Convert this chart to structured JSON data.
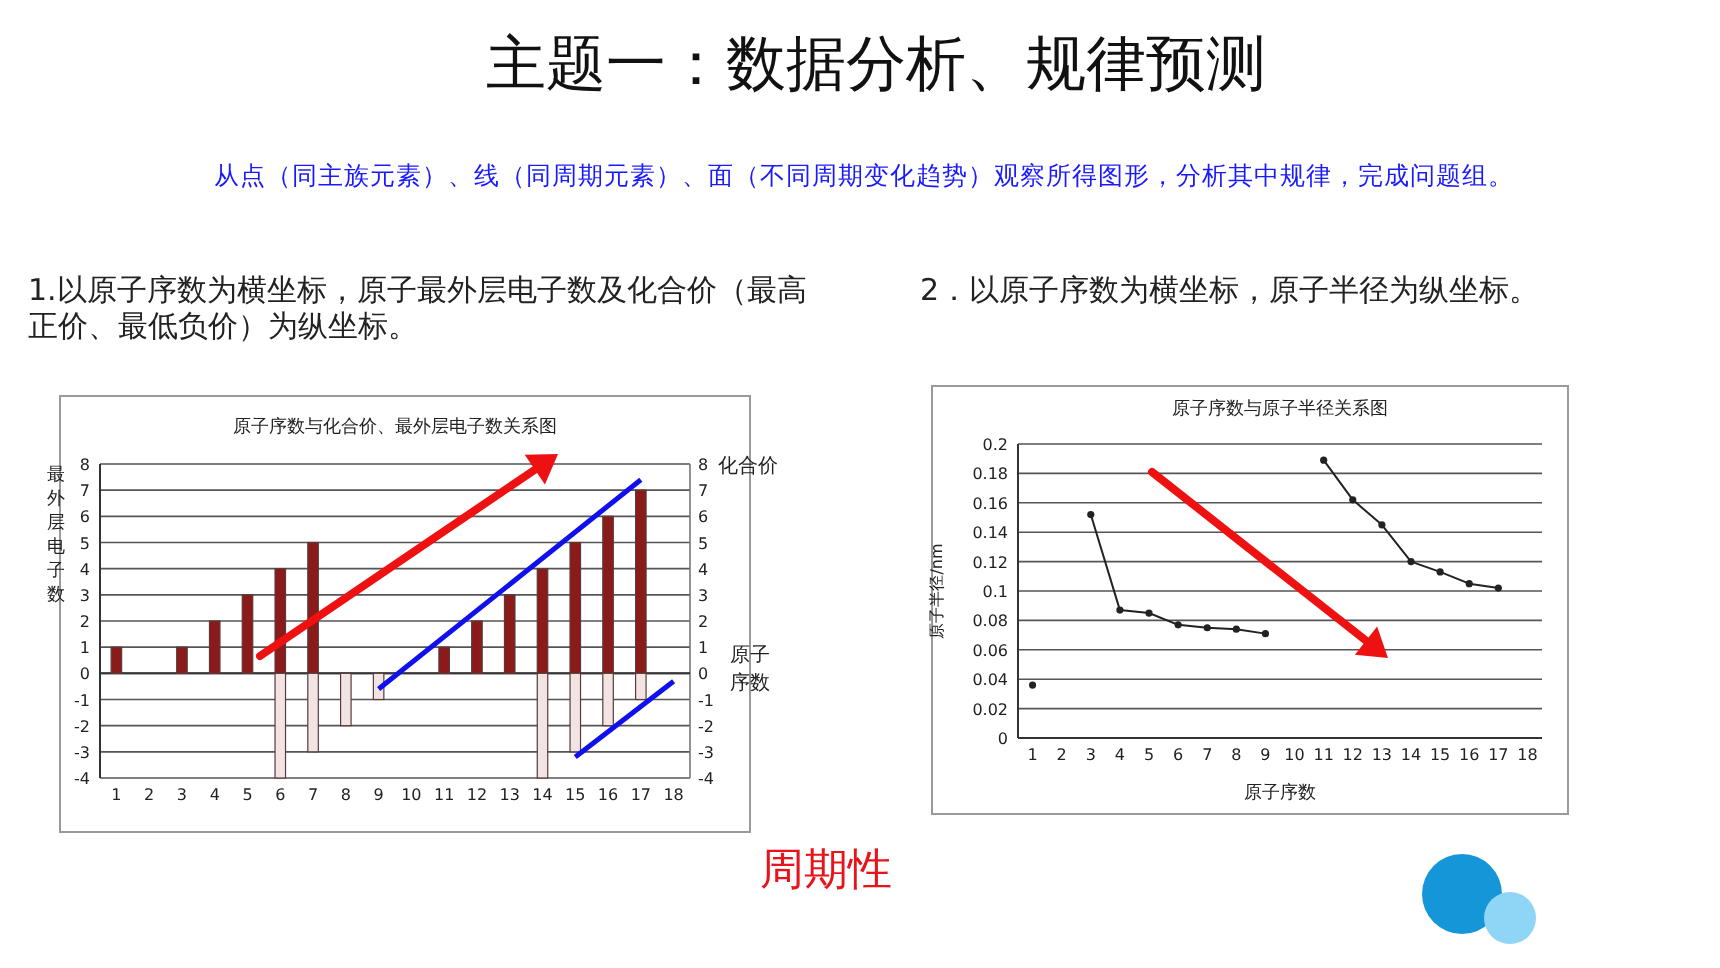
{
  "chart_data": [
    {
      "type": "other",
      "title": "主题一：数据分析、规律预测",
      "subtitle": "从点（同主族元素）、线（同周期元素）、面（不同周期变化趋势）观察所得图形，分析其中规律，完成问题组。",
      "annotations": [
        "1.以原子序数为横坐标，原子最外层电子数及化合价（最高正价、最低负价）为纵坐标。",
        "2．以原子序数为横坐标，原子半径为纵坐标。",
        "周期性"
      ]
    },
    {
      "type": "bar",
      "title": "原子序数与化合价、最外层电子数关系图",
      "ylabel": "最外层电子数",
      "y2label": "化合价",
      "xlabel": "原子序数",
      "categories": [
        "1",
        "2",
        "3",
        "4",
        "5",
        "6",
        "7",
        "8",
        "9",
        "10",
        "11",
        "12",
        "13",
        "14",
        "15",
        "16",
        "17",
        "18"
      ],
      "series": [
        {
          "color": "#8b1a1a",
          "values": [
            1,
            null,
            1,
            2,
            3,
            4,
            5,
            null,
            null,
            null,
            1,
            2,
            3,
            4,
            5,
            6,
            7,
            null
          ]
        },
        {
          "color": "#f3e4e4",
          "values": [
            null,
            null,
            null,
            null,
            null,
            -4,
            -3,
            -2,
            -1,
            null,
            null,
            null,
            null,
            -4,
            -3,
            -2,
            -1,
            null
          ]
        },
        {
          "type": "line",
          "color": "#1010ee",
          "x": [
            "9",
            "17"
          ],
          "values": [
            -0.6,
            7.4
          ]
        },
        {
          "type": "line",
          "color": "#1010ee",
          "x": [
            "15",
            "18"
          ],
          "values": [
            -3.2,
            -0.3
          ]
        }
      ],
      "ylim": [
        -4,
        8
      ],
      "yticks": [
        -4,
        -3,
        -2,
        -1,
        0,
        1,
        2,
        3,
        4,
        5,
        6,
        7,
        8
      ],
      "y2lim": [
        -4,
        8
      ],
      "y2ticks": [
        -4,
        -3,
        -2,
        -1,
        0,
        1,
        2,
        3,
        4,
        5,
        6,
        7,
        8
      ],
      "grid": "y"
    },
    {
      "type": "line",
      "title": "原子序数与原子半径关系图",
      "ylabel": "原子半径/nm",
      "xlabel": "原子序数",
      "categories": [
        "1",
        "2",
        "3",
        "4",
        "5",
        "6",
        "7",
        "8",
        "9",
        "10",
        "11",
        "12",
        "13",
        "14",
        "15",
        "16",
        "17",
        "18"
      ],
      "series": [
        {
          "color": "#222222",
          "values": [
            0.036,
            null,
            0.152,
            0.087,
            0.085,
            0.077,
            0.075,
            0.074,
            0.071,
            null,
            0.189,
            0.162,
            0.145,
            0.12,
            0.113,
            0.105,
            0.102,
            null
          ]
        }
      ],
      "ylim": [
        0,
        0.2
      ],
      "yticks": [
        0,
        0.02,
        0.04,
        0.06,
        0.08,
        0.1,
        0.12,
        0.14,
        0.16,
        0.18,
        0.2
      ],
      "grid": "y",
      "marker": "circle"
    }
  ]
}
